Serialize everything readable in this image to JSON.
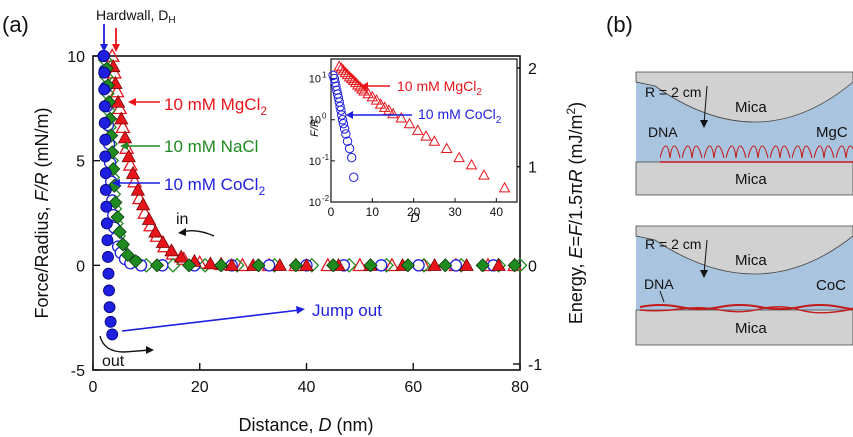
{
  "panel_labels": {
    "a": "(a)",
    "b": "(b)"
  },
  "chart_data": {
    "type": "scatter",
    "xlabel": "Distance, D (nm)",
    "ylabel": "Force/Radius, F/R (mN/m)",
    "y2label": "Energy, E=F/1.5πR (mJ/m²)",
    "xlim": [
      0,
      80
    ],
    "ylim": [
      -5,
      10
    ],
    "xticks": [
      "0",
      "20",
      "40",
      "60",
      "80"
    ],
    "yticks": [
      "-5",
      "0",
      "5",
      "10"
    ],
    "y2ticks": [
      "-1",
      "0",
      "1",
      "2"
    ],
    "grid": false,
    "hardwall_label": "Hardwall, D",
    "hardwall_sub": "H",
    "annotation_in": "in",
    "annotation_out": "out",
    "annotation_jump": "Jump out",
    "series": [
      {
        "name": "10 mM MgCl2",
        "label": "10 mM MgCl",
        "sub": "2",
        "color": "#e8141b",
        "approach": [
          [
            3.6,
            10
          ],
          [
            4.0,
            9.2
          ],
          [
            4.5,
            8.3
          ],
          [
            5.0,
            7.5
          ],
          [
            5.6,
            6.6
          ],
          [
            6.3,
            5.6
          ],
          [
            7.0,
            4.8
          ],
          [
            7.8,
            4.0
          ],
          [
            8.7,
            3.2
          ],
          [
            9.7,
            2.5
          ],
          [
            10.8,
            1.9
          ],
          [
            12.0,
            1.4
          ],
          [
            13.4,
            0.9
          ],
          [
            15,
            0.55
          ],
          [
            17,
            0.3
          ],
          [
            20,
            0.12
          ],
          [
            24,
            0.05
          ],
          [
            28,
            0
          ],
          [
            33,
            0
          ],
          [
            38,
            0
          ],
          [
            44,
            0
          ],
          [
            50,
            0
          ],
          [
            56,
            0
          ],
          [
            62,
            0
          ],
          [
            68,
            0
          ],
          [
            74,
            0
          ],
          [
            79,
            0
          ]
        ],
        "separation": [
          [
            3.8,
            9.5
          ],
          [
            4.2,
            8.7
          ],
          [
            4.7,
            7.8
          ],
          [
            5.3,
            7.0
          ],
          [
            6.0,
            6.1
          ],
          [
            6.7,
            5.2
          ],
          [
            7.5,
            4.4
          ],
          [
            8.4,
            3.6
          ],
          [
            9.4,
            2.9
          ],
          [
            10.5,
            2.2
          ],
          [
            11.7,
            1.6
          ],
          [
            13.1,
            1.1
          ],
          [
            14.7,
            0.7
          ],
          [
            16.5,
            0.4
          ],
          [
            19,
            0.2
          ],
          [
            22,
            0.08
          ],
          [
            26,
            0
          ],
          [
            30,
            0
          ],
          [
            35,
            0
          ],
          [
            40,
            0
          ],
          [
            46,
            0
          ],
          [
            52,
            0
          ],
          [
            58,
            0
          ],
          [
            64,
            0
          ],
          [
            70,
            0
          ],
          [
            76,
            0
          ]
        ]
      },
      {
        "name": "10 mM NaCl",
        "label": "10 mM NaCl",
        "sub": "",
        "color": "#1f8a1f",
        "approach": [
          [
            2.3,
            9.8
          ],
          [
            2.5,
            9.0
          ],
          [
            2.7,
            8.2
          ],
          [
            2.9,
            7.4
          ],
          [
            3.1,
            6.6
          ],
          [
            3.3,
            5.8
          ],
          [
            3.5,
            5.0
          ],
          [
            3.7,
            4.2
          ],
          [
            3.9,
            3.4
          ],
          [
            4.1,
            2.7
          ],
          [
            4.4,
            2.0
          ],
          [
            4.8,
            1.4
          ],
          [
            5.3,
            0.9
          ],
          [
            6,
            0.5
          ],
          [
            7,
            0.25
          ],
          [
            8.5,
            0.1
          ],
          [
            10,
            0
          ],
          [
            15,
            0
          ],
          [
            21,
            0
          ],
          [
            27,
            0
          ],
          [
            34,
            0
          ],
          [
            41,
            0
          ],
          [
            48,
            0
          ],
          [
            55,
            0
          ],
          [
            62,
            0
          ],
          [
            69,
            0
          ],
          [
            76,
            0
          ],
          [
            80,
            0
          ]
        ],
        "separation": [
          [
            2.6,
            9.4
          ],
          [
            2.8,
            8.6
          ],
          [
            3.0,
            7.8
          ],
          [
            3.2,
            7.0
          ],
          [
            3.4,
            6.2
          ],
          [
            3.6,
            5.4
          ],
          [
            3.8,
            4.6
          ],
          [
            4.0,
            3.8
          ],
          [
            4.2,
            3.0
          ],
          [
            4.6,
            2.3
          ],
          [
            5.0,
            1.6
          ],
          [
            5.6,
            1.0
          ],
          [
            6.5,
            0.5
          ],
          [
            8,
            0.2
          ],
          [
            12,
            0
          ],
          [
            18,
            0
          ],
          [
            24,
            0
          ],
          [
            31,
            0
          ],
          [
            38,
            0
          ],
          [
            45,
            0
          ],
          [
            52,
            0
          ],
          [
            59,
            0
          ],
          [
            66,
            0
          ],
          [
            73,
            0
          ],
          [
            79,
            0
          ]
        ]
      },
      {
        "name": "10 mM CoCl2",
        "label": "10 mM CoCl",
        "sub": "2",
        "color": "#1f1fe0",
        "approach": [
          [
            2.0,
            10
          ],
          [
            2.2,
            9.3
          ],
          [
            2.4,
            8.5
          ],
          [
            2.6,
            7.6
          ],
          [
            2.8,
            6.7
          ],
          [
            3.0,
            5.8
          ],
          [
            3.2,
            4.9
          ],
          [
            3.4,
            4.0
          ],
          [
            3.6,
            3.1
          ],
          [
            3.8,
            2.4
          ],
          [
            4.0,
            1.8
          ],
          [
            4.3,
            1.3
          ],
          [
            4.7,
            0.9
          ],
          [
            5.2,
            0.6
          ],
          [
            6,
            0.3
          ],
          [
            7,
            0.1
          ],
          [
            9,
            0
          ],
          [
            13,
            0
          ],
          [
            19,
            0
          ],
          [
            26,
            0
          ],
          [
            33,
            0
          ],
          [
            40,
            0
          ],
          [
            47,
            0
          ],
          [
            54,
            0
          ],
          [
            61,
            0
          ],
          [
            68,
            0
          ],
          [
            75,
            0
          ]
        ],
        "separation": [
          [
            2.0,
            10
          ],
          [
            2.1,
            9.2
          ],
          [
            2.1,
            8.4
          ],
          [
            2.2,
            7.6
          ],
          [
            2.2,
            6.8
          ],
          [
            2.3,
            6.0
          ],
          [
            2.3,
            5.2
          ],
          [
            2.4,
            4.4
          ],
          [
            2.4,
            3.6
          ],
          [
            2.5,
            2.8
          ],
          [
            2.6,
            2.0
          ],
          [
            2.7,
            1.2
          ],
          [
            2.8,
            0.4
          ],
          [
            2.9,
            -0.4
          ],
          [
            3.0,
            -1.2
          ],
          [
            3.1,
            -2.0
          ],
          [
            3.3,
            -2.7
          ],
          [
            3.6,
            -3.3
          ]
        ]
      }
    ],
    "inset": {
      "xlabel": "D",
      "ylabel": "F/R",
      "xlim": [
        0,
        45
      ],
      "ylog": true,
      "ylim": [
        0.01,
        30
      ],
      "xticks": [
        "0",
        "10",
        "20",
        "30",
        "40"
      ],
      "yticks": [
        "10",
        "10",
        "10",
        "10"
      ],
      "ytick_exp": [
        "-2",
        "-1",
        "0",
        "1"
      ],
      "series": [
        {
          "name": "10 mM MgCl2",
          "label": "10 mM MgCl",
          "sub": "2",
          "color": "#e8141b",
          "points": [
            [
              2,
              20
            ],
            [
              2.5,
              18
            ],
            [
              3,
              16
            ],
            [
              3.5,
              14
            ],
            [
              4,
              12.5
            ],
            [
              4.5,
              11
            ],
            [
              5,
              10
            ],
            [
              5.5,
              9
            ],
            [
              6,
              8
            ],
            [
              6.5,
              7
            ],
            [
              7,
              6.3
            ],
            [
              7.5,
              5.6
            ],
            [
              8,
              5
            ],
            [
              9,
              4.3
            ],
            [
              10,
              3.6
            ],
            [
              11,
              3.0
            ],
            [
              12,
              2.4
            ],
            [
              13,
              2.0
            ],
            [
              14,
              1.7
            ],
            [
              15,
              1.4
            ],
            [
              17,
              1.1
            ],
            [
              19,
              0.8
            ],
            [
              21,
              0.55
            ],
            [
              23,
              0.4
            ],
            [
              25,
              0.3
            ],
            [
              28,
              0.2
            ],
            [
              31,
              0.12
            ],
            [
              34,
              0.08
            ],
            [
              37,
              0.045
            ],
            [
              42,
              0.022
            ]
          ]
        },
        {
          "name": "10 mM CoCl2",
          "label": "10 mM CoCl",
          "sub": "2",
          "color": "#1f1fe0",
          "points": [
            [
              0.5,
              12
            ],
            [
              0.8,
              10
            ],
            [
              1.0,
              8
            ],
            [
              1.2,
              6.5
            ],
            [
              1.4,
              5.2
            ],
            [
              1.6,
              4.2
            ],
            [
              1.8,
              3.4
            ],
            [
              2.0,
              2.7
            ],
            [
              2.2,
              2.1
            ],
            [
              2.4,
              1.7
            ],
            [
              2.6,
              1.3
            ],
            [
              2.8,
              1.0
            ],
            [
              3.0,
              0.8
            ],
            [
              3.3,
              0.6
            ],
            [
              3.6,
              0.45
            ],
            [
              4,
              0.3
            ],
            [
              4.5,
              0.2
            ],
            [
              5,
              0.12
            ],
            [
              5.5,
              0.04
            ],
            [
              9.5,
              0.003
            ]
          ]
        }
      ]
    }
  },
  "diagram": {
    "radius_label": "R = 2 cm",
    "mica_top": "Mica",
    "mica_bottom": "Mica",
    "dna_label": "DNA",
    "solution_top": "MgC",
    "solution_bottom": "CoC"
  }
}
